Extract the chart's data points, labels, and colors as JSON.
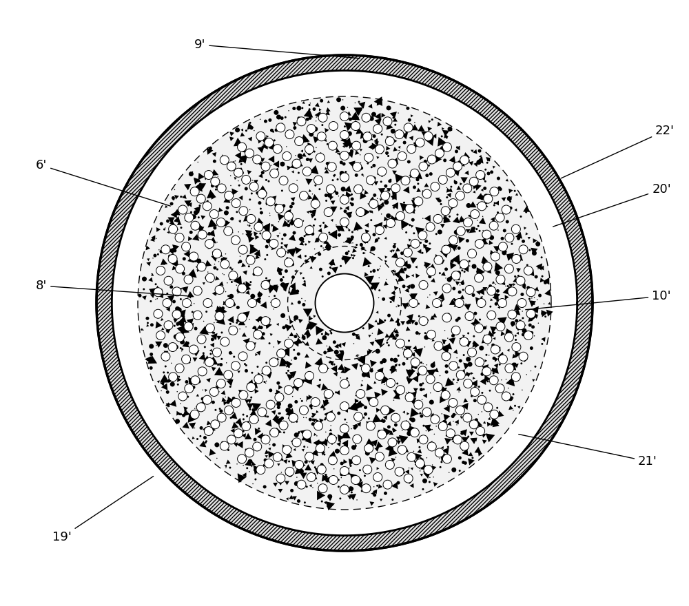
{
  "fig_width": 10.0,
  "fig_height": 8.8,
  "dpi": 100,
  "bg_color": "#ffffff",
  "R_outer": 0.72,
  "R_outer_inner": 0.675,
  "R_catalyst": 0.6,
  "R_tube_inner_dashed": 0.165,
  "R_center_pipe": 0.085,
  "tube_ring_radii": [
    0.2,
    0.235,
    0.268,
    0.3,
    0.333,
    0.365,
    0.397,
    0.428,
    0.458,
    0.488,
    0.515,
    0.542
  ],
  "tube_counts": [
    10,
    14,
    18,
    22,
    26,
    30,
    34,
    38,
    42,
    46,
    50,
    54
  ],
  "tube_r": 0.013,
  "speckle_count": 2500,
  "label_fontsize": 13
}
